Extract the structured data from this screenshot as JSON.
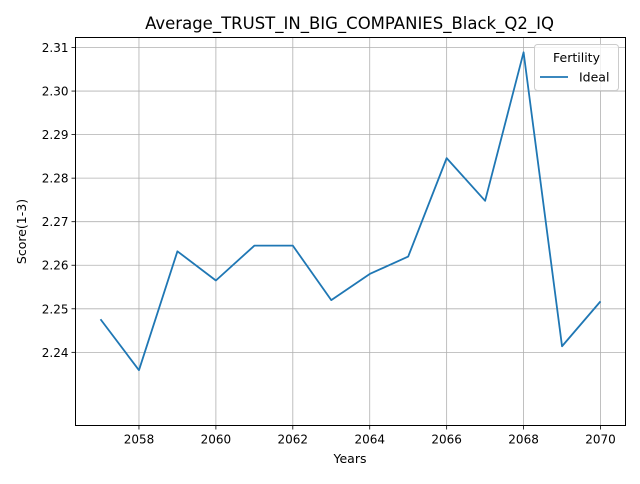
{
  "chart_data": {
    "type": "line",
    "title": "Average_TRUST_IN_BIG_COMPANIES_Black_Q2_IQ",
    "xlabel": "Years",
    "ylabel": "Score(1-3)",
    "xlim": [
      2056.35,
      2070.65
    ],
    "ylim": [
      2.2232,
      2.3123
    ],
    "x_ticks": [
      2058,
      2060,
      2062,
      2064,
      2066,
      2068,
      2070
    ],
    "y_ticks": [
      2.24,
      2.25,
      2.26,
      2.27,
      2.28,
      2.29,
      2.3,
      2.31
    ],
    "y_tick_labels": [
      "2.24",
      "2.25",
      "2.26",
      "2.27",
      "2.28",
      "2.29",
      "2.30",
      "2.31"
    ],
    "grid": true,
    "legend": {
      "title": "Fertility",
      "position": "top-right"
    },
    "series": [
      {
        "name": "Ideal",
        "color": "#1f77b4",
        "x": [
          2057,
          2058,
          2059,
          2060,
          2061,
          2062,
          2063,
          2064,
          2065,
          2066,
          2067,
          2068,
          2069,
          2070
        ],
        "values": [
          2.2476,
          2.2359,
          2.2632,
          2.2565,
          2.2645,
          2.2645,
          2.252,
          2.258,
          2.262,
          2.2846,
          2.2748,
          2.3089,
          2.2414,
          2.2517
        ]
      }
    ]
  }
}
